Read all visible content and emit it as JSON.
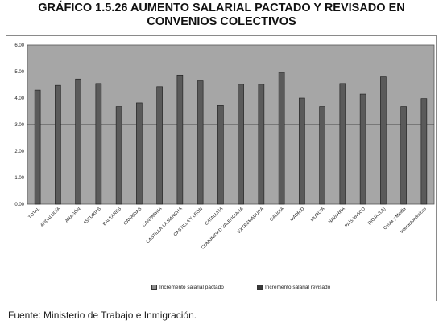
{
  "title_line1": "GRÁFICO 1.5.26 AUMENTO SALARIAL PACTADO Y REVISADO EN",
  "title_line2": "CONVENIOS COLECTIVOS",
  "source": "Fuente: Ministerio de Trabajo e Inmigración.",
  "colors": {
    "plot_bg": "#a6a6a6",
    "bar_fill": "#5a5a5a",
    "bar_edge": "#1a1a1a",
    "pactado_swatch": "#8c8c8c",
    "revisado_swatch": "#3a3a3a"
  },
  "chart_data": {
    "type": "bar",
    "title": "GRÁFICO 1.5.26 AUMENTO SALARIAL PACTADO Y REVISADO EN CONVENIOS COLECTIVOS",
    "categories": [
      "TOTAL",
      "ANDALUCÍA",
      "ARAGÓN",
      "ASTURIAS",
      "BALEARES",
      "CANARIAS",
      "CANTABRIA",
      "CASTILLA-LA MANCHA",
      "CASTILLA Y LEÓN",
      "CATALUÑA",
      "COMUNIDAD VALENCIANA",
      "EXTREMADURA",
      "GALICIA",
      "MADRID",
      "MURCIA",
      "NAVARRA",
      "PAÍS VASCO",
      "RIOJA (LA)",
      "Ceuta y Melilla",
      "Interautonómicos"
    ],
    "series": [
      {
        "name": "Incremento salarial pactado",
        "values": [
          4.3,
          4.48,
          4.72,
          4.55,
          3.68,
          3.82,
          4.43,
          4.87,
          4.65,
          3.72,
          4.52,
          4.52,
          4.97,
          4.0,
          3.68,
          4.55,
          4.15,
          4.8,
          3.68,
          3.98
        ]
      },
      {
        "name": "Incremento salarial revisado",
        "values": [
          3.0,
          3.0,
          3.0,
          3.0,
          3.0,
          3.0,
          3.0,
          3.0,
          3.0,
          3.0,
          3.0,
          3.0,
          3.0,
          3.0,
          3.0,
          3.0,
          3.0,
          3.0,
          3.0,
          3.0
        ]
      }
    ],
    "yticks": [
      "0.00",
      "1.00",
      "2.00",
      "3.00",
      "4.00",
      "5.00",
      "6.00"
    ],
    "ylim": [
      0,
      6
    ],
    "grid": false,
    "legend_position": "bottom",
    "xlabel": "",
    "ylabel": ""
  }
}
